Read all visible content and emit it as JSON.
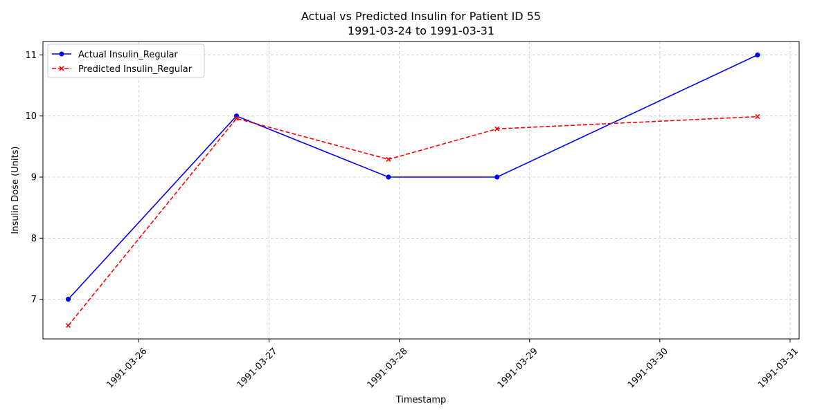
{
  "chart_data": {
    "type": "line",
    "title": "Actual vs Predicted Insulin for Patient ID 55",
    "subtitle": "1991-03-24 to 1991-03-31",
    "xlabel": "Timestamp",
    "ylabel": "Insulin Dose (Units)",
    "xlim": [
      "1991-03-25 06:20",
      "1991-03-31 01:40"
    ],
    "ylim": [
      6.35,
      11.22
    ],
    "x_ticks": [
      "1991-03-26",
      "1991-03-27",
      "1991-03-28",
      "1991-03-29",
      "1991-03-30",
      "1991-03-31"
    ],
    "y_ticks": [
      7,
      8,
      9,
      10,
      11
    ],
    "grid": true,
    "legend_position": "top-left",
    "series": [
      {
        "name": "Actual Insulin_Regular",
        "color": "#0000ff",
        "line_style": "solid",
        "marker": "circle",
        "points": [
          {
            "x": "1991-03-25 11:00",
            "y": 7
          },
          {
            "x": "1991-03-26 18:00",
            "y": 10
          },
          {
            "x": "1991-03-27 22:00",
            "y": 9
          },
          {
            "x": "1991-03-28 18:00",
            "y": 9
          },
          {
            "x": "1991-03-30 18:00",
            "y": 11
          }
        ]
      },
      {
        "name": "Predicted Insulin_Regular",
        "color": "#ff0000",
        "line_style": "dashed",
        "marker": "x",
        "points": [
          {
            "x": "1991-03-25 11:00",
            "y": 6.57
          },
          {
            "x": "1991-03-26 18:00",
            "y": 9.96
          },
          {
            "x": "1991-03-27 22:00",
            "y": 9.29
          },
          {
            "x": "1991-03-28 18:00",
            "y": 9.79
          },
          {
            "x": "1991-03-30 18:00",
            "y": 9.99
          }
        ]
      }
    ]
  }
}
